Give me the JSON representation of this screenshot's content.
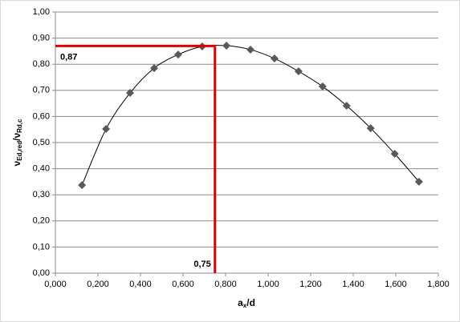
{
  "chart_data": {
    "type": "scatter",
    "xlabel": [
      "a",
      "x",
      "/d"
    ],
    "ylabel": [
      "ν",
      "Ed,red",
      "/ν",
      "Rd,c"
    ],
    "series": [
      {
        "color": "#595959",
        "x": [
          0.125,
          0.238,
          0.351,
          0.464,
          0.577,
          0.69,
          0.804,
          0.917,
          1.03,
          1.143,
          1.256,
          1.369,
          1.482,
          1.595,
          1.709
        ],
        "values": [
          0.337,
          0.552,
          0.69,
          0.785,
          0.837,
          0.868,
          0.871,
          0.856,
          0.822,
          0.773,
          0.715,
          0.641,
          0.555,
          0.457,
          0.35
        ]
      }
    ],
    "annotations": [
      {
        "label": "0,87",
        "value": 0.87,
        "color": "#e00000"
      },
      {
        "label": "0,75",
        "value": 0.75,
        "color": "#e00000"
      }
    ],
    "xlim": [
      0,
      1.8
    ],
    "ylim": [
      0,
      1
    ],
    "xticks": [
      {
        "value": 0,
        "label": "0,000"
      },
      {
        "value": 0.2,
        "label": "0,200"
      },
      {
        "value": 0.4,
        "label": "0,400"
      },
      {
        "value": 0.6,
        "label": "0,600"
      },
      {
        "value": 0.8,
        "label": "0,800"
      },
      {
        "value": 1.0,
        "label": "1,000"
      },
      {
        "value": 1.2,
        "label": "1,200"
      },
      {
        "value": 1.4,
        "label": "1,400"
      },
      {
        "value": 1.6,
        "label": "1,600"
      },
      {
        "value": 1.8,
        "label": "1,800"
      }
    ],
    "yticks": [
      {
        "value": 0,
        "label": "0,00"
      },
      {
        "value": 0.1,
        "label": "0,10"
      },
      {
        "value": 0.2,
        "label": "0,20"
      },
      {
        "value": 0.3,
        "label": "0,30"
      },
      {
        "value": 0.4,
        "label": "0,40"
      },
      {
        "value": 0.5,
        "label": "0,50"
      },
      {
        "value": 0.6,
        "label": "0,60"
      },
      {
        "value": 0.7,
        "label": "0,70"
      },
      {
        "value": 0.8,
        "label": "0,80"
      },
      {
        "value": 0.9,
        "label": "0,90"
      },
      {
        "value": 1.0,
        "label": "1,00"
      }
    ],
    "grid": true
  }
}
